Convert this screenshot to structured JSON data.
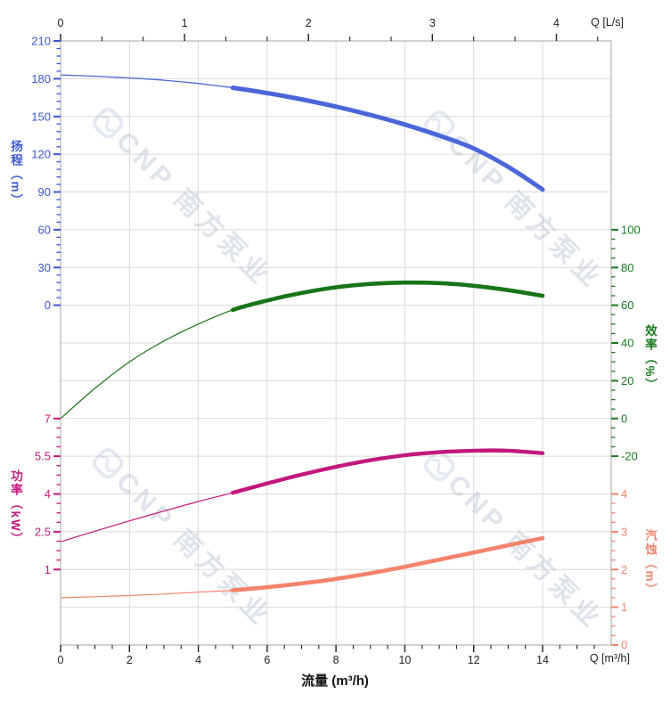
{
  "watermark": {
    "text": "CNP 南方泵业"
  },
  "labels": {
    "flow_axis_title": "流量 (m³/h)",
    "flow_unit_top": "Q [L/s]",
    "flow_unit_bottom": "Q [m³/h]",
    "head_axis_title": "扬程（m）",
    "power_axis_title": "功率（kW）",
    "efficiency_axis_title": "效率（%）",
    "npsh_axis_title": "汽蚀（m）"
  },
  "colors": {
    "head_curve": "#4a66d9",
    "head_text": "#3b57d0",
    "efficiency_curve": "#177517",
    "efficiency_text": "#1a7a1f",
    "power_curve": "#c2187e",
    "power_text": "#c2187e",
    "npsh_curve": "#f4836c",
    "npsh_text": "#f4836c",
    "grid": "#d9d9d9",
    "frame": "#b3b3b3",
    "black_text": "#222222",
    "watermark": "#aebacc"
  },
  "chart_data": {
    "type": "line",
    "title": "",
    "x_axis_bottom": {
      "label": "流量 (m³/h)",
      "unit": "Q [m³/h]",
      "ticks": [
        0,
        2,
        4,
        6,
        8,
        10,
        12,
        14
      ],
      "minor_step": 0.5,
      "range": [
        0,
        16
      ]
    },
    "x_axis_top": {
      "unit": "Q [L/s]",
      "ticks": [
        0,
        1,
        2,
        3,
        4
      ],
      "minor_per_major": 2,
      "m3h_per_lps": 3.6
    },
    "y_axes": [
      {
        "id": "head",
        "title": "扬程（m）",
        "side": "left",
        "ticks": [
          210,
          180,
          150,
          120,
          90,
          60,
          30,
          0
        ],
        "first_tick_row": 0,
        "units_per_row": 30,
        "minor_subdiv": 5
      },
      {
        "id": "efficiency",
        "title": "效率（%）",
        "side": "right",
        "ticks": [
          100,
          80,
          60,
          40,
          20,
          0,
          -20
        ],
        "first_tick_row": 5,
        "units_per_row": 20,
        "minor_subdiv": 4
      },
      {
        "id": "power",
        "title": "功率（kW）",
        "side": "left",
        "ticks": [
          7,
          5.5,
          4,
          2.5,
          1
        ],
        "first_tick_row": 10,
        "units_per_row": 1.5,
        "minor_subdiv": 4
      },
      {
        "id": "npsh",
        "title": "汽蚀（m）",
        "side": "right",
        "ticks": [
          4,
          3,
          2,
          1,
          0
        ],
        "first_tick_row": 12,
        "units_per_row": 1,
        "minor_subdiv": 4
      }
    ],
    "series": [
      {
        "id": "head",
        "name": "扬程",
        "axis": "head",
        "x": [
          0,
          1,
          2,
          3,
          4,
          5,
          6,
          7,
          8,
          9,
          10,
          11,
          12,
          13,
          14
        ],
        "values": [
          183,
          182,
          180.6,
          178.8,
          176.2,
          172.8,
          168.6,
          163.6,
          157.8,
          151.2,
          143.6,
          134.8,
          124.6,
          110.0,
          92.0
        ],
        "thin_until": 5,
        "thin_width": 1.3,
        "thick_width": 5
      },
      {
        "id": "efficiency",
        "name": "效率",
        "axis": "efficiency",
        "x": [
          0,
          1,
          2,
          3,
          4,
          5,
          6,
          7,
          8,
          9,
          10,
          11,
          12,
          13,
          14
        ],
        "values": [
          0,
          16,
          30,
          41,
          50,
          57.5,
          62.5,
          66.5,
          69.5,
          71.3,
          72,
          71.7,
          70.3,
          68,
          65
        ],
        "thin_until": 5,
        "thin_width": 1.2,
        "thick_width": 4.6
      },
      {
        "id": "power",
        "name": "功率",
        "axis": "power",
        "x": [
          0,
          1,
          2,
          3,
          4,
          5,
          6,
          7,
          8,
          9,
          10,
          11,
          12,
          13,
          14
        ],
        "values": [
          2.1,
          2.52,
          2.93,
          3.32,
          3.7,
          4.05,
          4.42,
          4.77,
          5.08,
          5.34,
          5.54,
          5.66,
          5.72,
          5.72,
          5.62
        ],
        "thin_until": 5,
        "thin_width": 1.2,
        "thick_width": 4.4
      },
      {
        "id": "npsh",
        "name": "汽蚀",
        "axis": "npsh",
        "x": [
          0,
          1,
          2,
          3,
          4,
          5,
          6,
          7,
          8,
          9,
          10,
          11,
          12,
          13,
          14
        ],
        "values": [
          1.25,
          1.28,
          1.31,
          1.35,
          1.4,
          1.45,
          1.53,
          1.63,
          1.75,
          1.9,
          2.07,
          2.26,
          2.45,
          2.64,
          2.83
        ],
        "thin_until": 5,
        "thin_width": 1.2,
        "thick_width": 4.6
      }
    ]
  }
}
